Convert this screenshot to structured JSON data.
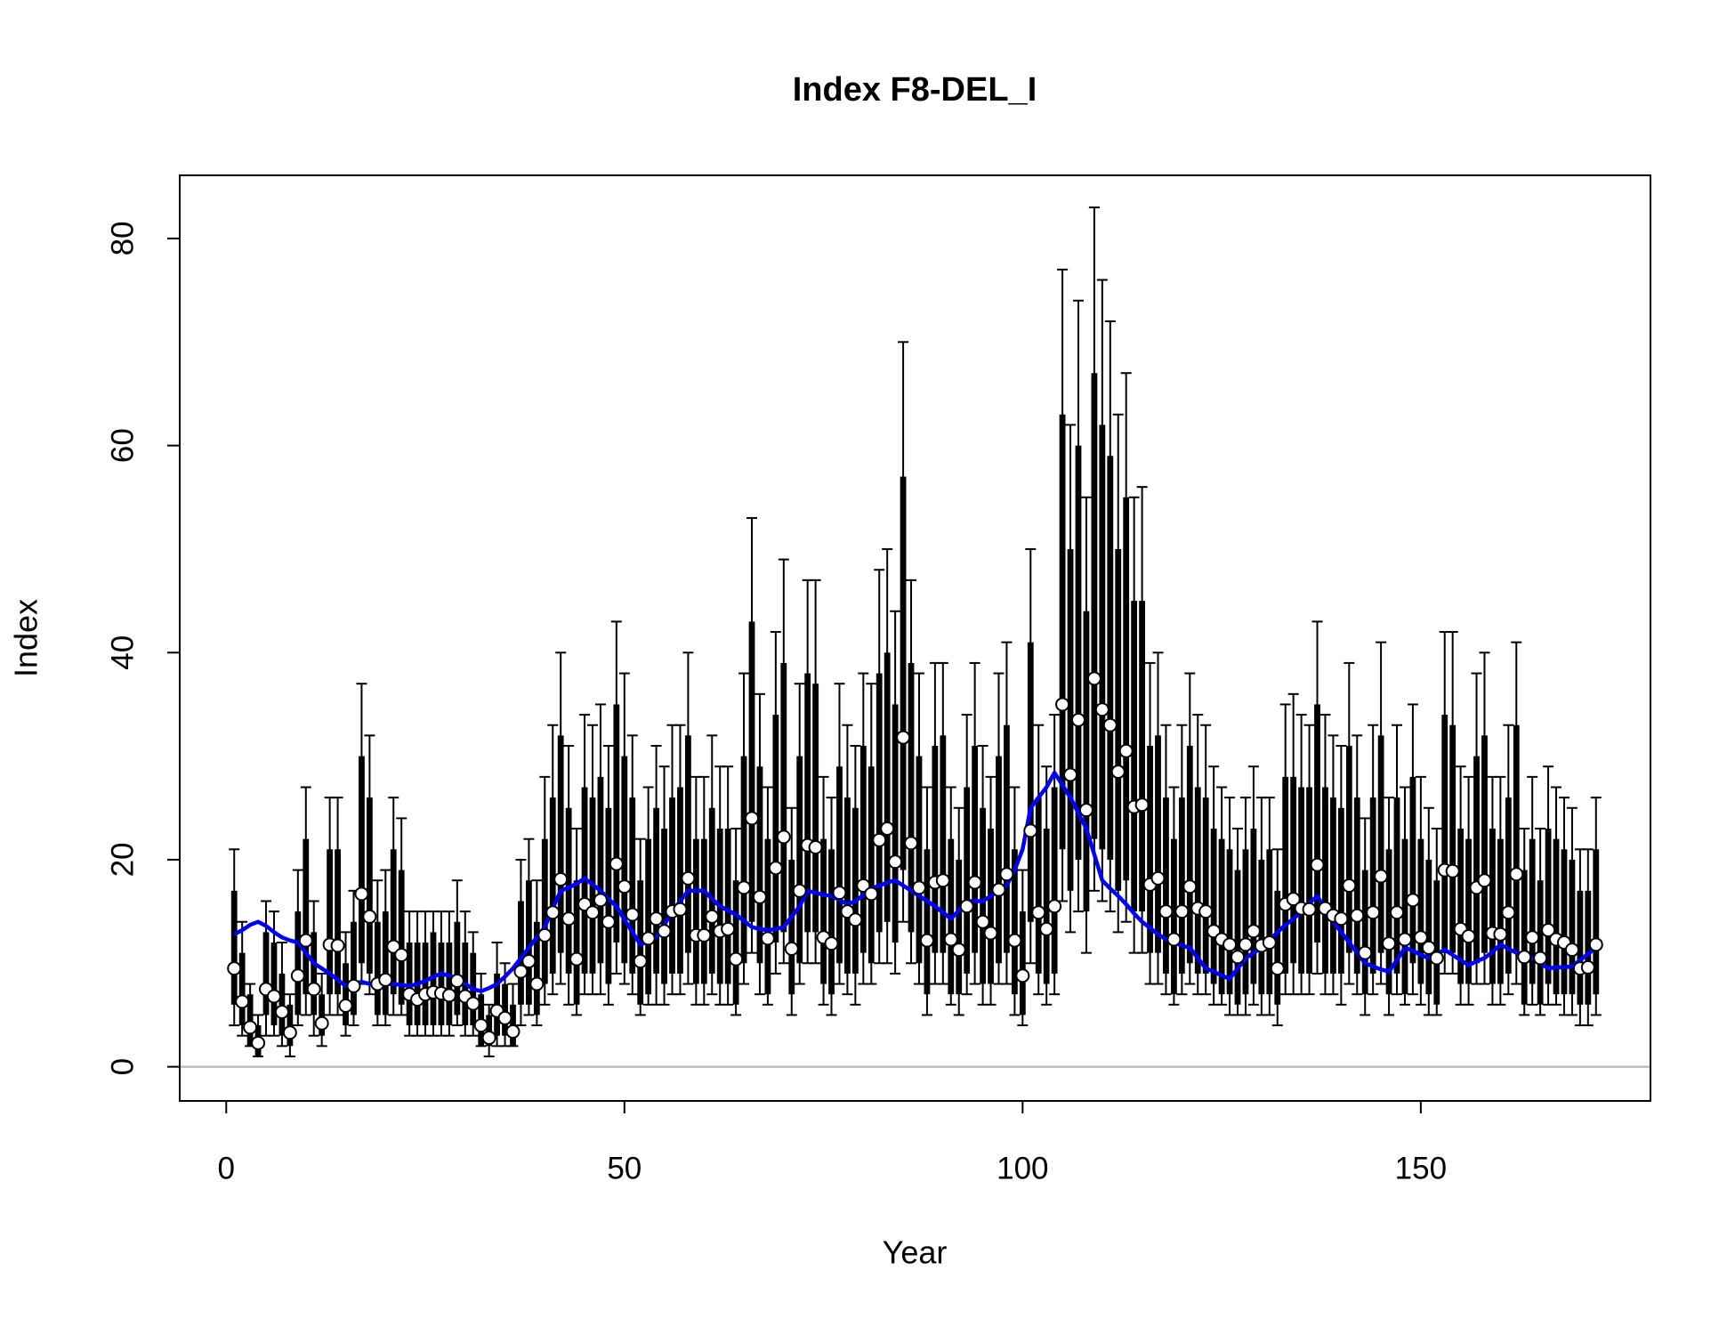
{
  "chart_data": {
    "type": "interval",
    "title": "Index F8-DEL_I",
    "xlabel": "Year",
    "ylabel": "Index",
    "xlim": [
      -5.84,
      178.84
    ],
    "ylim": [
      -3.3,
      86.1
    ],
    "xticks": [
      0,
      50,
      100,
      150
    ],
    "yticks": [
      0,
      20,
      40,
      60,
      80
    ],
    "point_color": "#ffffff",
    "bar_color": "#000000",
    "reference_line": {
      "value": 0,
      "color": "#bebebe"
    },
    "x": [
      1,
      2,
      3,
      4,
      5,
      6,
      7,
      8,
      9,
      10,
      11,
      12,
      13,
      14,
      15,
      16,
      17,
      18,
      19,
      20,
      21,
      22,
      23,
      24,
      25,
      26,
      27,
      28,
      29,
      30,
      31,
      32,
      33,
      34,
      35,
      36,
      37,
      38,
      39,
      40,
      41,
      42,
      43,
      44,
      45,
      46,
      47,
      48,
      49,
      50,
      51,
      52,
      53,
      54,
      55,
      56,
      57,
      58,
      59,
      60,
      61,
      62,
      63,
      64,
      65,
      66,
      67,
      68,
      69,
      70,
      71,
      72,
      73,
      74,
      75,
      76,
      77,
      78,
      79,
      80,
      81,
      82,
      83,
      84,
      85,
      86,
      87,
      88,
      89,
      90,
      91,
      92,
      93,
      94,
      95,
      96,
      97,
      98,
      99,
      100,
      101,
      102,
      103,
      104,
      105,
      106,
      107,
      108,
      109,
      110,
      111,
      112,
      113,
      114,
      115,
      116,
      117,
      118,
      119,
      120,
      121,
      122,
      123,
      124,
      125,
      126,
      127,
      128,
      129,
      130,
      131,
      132,
      133,
      134,
      135,
      136,
      137,
      138,
      139,
      140,
      141,
      142,
      143,
      144,
      145,
      146,
      147,
      148,
      149,
      150,
      151,
      152,
      153,
      154,
      155,
      156,
      157,
      158,
      159,
      160,
      161,
      162,
      163,
      164,
      165,
      166,
      167,
      168,
      169,
      170,
      171,
      172
    ],
    "values": [
      9.5,
      6.3,
      3.8,
      2.3,
      7.5,
      6.8,
      5.3,
      3.3,
      8.8,
      12.2,
      7.5,
      4.2,
      11.8,
      11.7,
      5.9,
      7.8,
      16.7,
      14.5,
      8.0,
      8.4,
      11.6,
      10.8,
      7.0,
      6.5,
      7.0,
      7.2,
      7.1,
      6.9,
      8.3,
      6.8,
      6.1,
      4.0,
      2.8,
      5.4,
      4.7,
      3.4,
      9.2,
      10.2,
      8.0,
      12.7,
      14.9,
      18.1,
      14.3,
      10.4,
      15.7,
      14.9,
      16.1,
      14.0,
      19.6,
      17.4,
      14.7,
      10.2,
      12.4,
      14.3,
      13.1,
      15.0,
      15.2,
      18.2,
      12.7,
      12.7,
      14.5,
      13.1,
      13.3,
      10.4,
      17.3,
      24.0,
      16.4,
      12.4,
      19.2,
      22.2,
      11.4,
      17.0,
      21.4,
      21.2,
      12.5,
      11.9,
      16.8,
      15.0,
      14.2,
      17.5,
      16.7,
      21.9,
      23.0,
      19.8,
      31.8,
      21.6,
      17.3,
      12.2,
      17.8,
      18.0,
      12.3,
      11.3,
      15.5,
      17.8,
      14.0,
      12.9,
      17.1,
      18.6,
      12.2,
      8.8,
      22.8,
      14.9,
      13.3,
      15.5,
      35.0,
      28.2,
      33.5,
      24.8,
      37.5,
      34.5,
      33.0,
      28.5,
      30.5,
      25.1,
      25.3,
      17.6,
      18.2,
      15.0,
      12.3,
      15.0,
      17.4,
      15.3,
      15.0,
      13.1,
      12.3,
      11.8,
      10.6,
      11.8,
      13.1,
      11.7,
      12.0,
      9.5,
      15.7,
      16.2,
      15.3,
      15.2,
      19.5,
      15.3,
      14.6,
      14.3,
      17.5,
      14.6,
      11.0,
      14.9,
      18.4,
      11.9,
      14.9,
      12.3,
      16.1,
      12.5,
      11.5,
      10.5,
      19.0,
      18.9,
      13.3,
      12.6,
      17.3,
      18.0,
      12.9,
      12.8,
      14.9,
      18.6,
      10.6,
      12.5,
      10.5,
      13.2,
      12.3,
      12.0,
      11.3,
      9.5,
      9.6,
      11.8
    ],
    "box_lower": [
      6,
      4,
      2,
      1,
      5,
      4,
      3,
      2,
      5,
      7,
      5,
      3,
      7,
      7,
      4,
      5,
      10,
      9,
      5,
      5,
      7,
      6,
      4,
      4,
      4,
      4,
      4,
      4,
      5,
      4,
      4,
      2,
      2,
      3,
      3,
      2,
      6,
      6,
      5,
      8,
      9,
      11,
      9,
      6,
      9,
      9,
      10,
      8,
      12,
      10,
      9,
      6,
      7,
      9,
      8,
      9,
      9,
      11,
      8,
      8,
      9,
      8,
      8,
      6,
      10,
      14,
      10,
      7,
      12,
      13,
      7,
      10,
      13,
      13,
      8,
      7,
      10,
      9,
      9,
      11,
      10,
      13,
      14,
      12,
      19,
      13,
      10,
      7,
      11,
      11,
      7,
      7,
      9,
      11,
      8,
      8,
      10,
      11,
      7,
      5,
      14,
      9,
      8,
      9,
      21,
      17,
      20,
      15,
      22,
      21,
      20,
      17,
      18,
      15,
      15,
      11,
      11,
      9,
      7,
      9,
      10,
      9,
      9,
      8,
      7,
      7,
      6,
      7,
      8,
      7,
      7,
      6,
      9,
      10,
      9,
      9,
      12,
      9,
      9,
      9,
      11,
      9,
      7,
      9,
      11,
      7,
      9,
      7,
      10,
      8,
      7,
      6,
      11,
      11,
      8,
      8,
      10,
      11,
      8,
      8,
      9,
      11,
      6,
      8,
      6,
      8,
      7,
      7,
      7,
      6,
      6,
      7
    ],
    "box_upper": [
      17,
      11,
      7,
      4,
      13,
      12,
      9,
      6,
      15,
      22,
      13,
      7,
      21,
      21,
      10,
      14,
      30,
      26,
      14,
      15,
      21,
      19,
      12,
      12,
      12,
      13,
      12,
      12,
      14,
      12,
      11,
      7,
      5,
      9,
      8,
      6,
      16,
      18,
      14,
      22,
      26,
      32,
      25,
      18,
      27,
      26,
      28,
      25,
      35,
      30,
      26,
      18,
      22,
      25,
      23,
      26,
      27,
      32,
      22,
      22,
      25,
      23,
      23,
      18,
      30,
      43,
      29,
      22,
      34,
      39,
      20,
      30,
      38,
      37,
      22,
      21,
      29,
      26,
      25,
      31,
      29,
      38,
      40,
      35,
      57,
      39,
      30,
      21,
      31,
      32,
      22,
      20,
      27,
      31,
      25,
      23,
      30,
      33,
      21,
      15,
      41,
      26,
      23,
      27,
      63,
      50,
      60,
      44,
      67,
      62,
      59,
      50,
      55,
      45,
      45,
      31,
      32,
      26,
      22,
      26,
      31,
      27,
      26,
      23,
      22,
      21,
      19,
      21,
      23,
      20,
      21,
      17,
      28,
      28,
      27,
      27,
      35,
      27,
      26,
      25,
      31,
      26,
      19,
      26,
      32,
      21,
      26,
      22,
      28,
      22,
      20,
      18,
      34,
      33,
      23,
      22,
      30,
      32,
      23,
      22,
      26,
      33,
      19,
      22,
      18,
      23,
      22,
      21,
      20,
      17,
      17,
      21
    ],
    "whisker_lower": [
      4,
      3,
      2,
      1,
      3,
      3,
      2,
      1,
      4,
      5,
      3,
      2,
      5,
      5,
      3,
      4,
      8,
      7,
      4,
      4,
      5,
      5,
      3,
      3,
      3,
      3,
      3,
      3,
      4,
      3,
      3,
      2,
      1,
      2,
      2,
      2,
      4,
      5,
      4,
      6,
      7,
      8,
      6,
      5,
      7,
      7,
      7,
      6,
      9,
      8,
      7,
      5,
      6,
      6,
      6,
      7,
      7,
      8,
      6,
      6,
      7,
      6,
      6,
      5,
      8,
      11,
      7,
      6,
      9,
      10,
      5,
      8,
      10,
      10,
      6,
      5,
      8,
      7,
      6,
      8,
      8,
      10,
      10,
      9,
      14,
      10,
      8,
      5,
      8,
      8,
      6,
      5,
      7,
      8,
      6,
      6,
      8,
      8,
      5,
      4,
      10,
      7,
      6,
      7,
      16,
      13,
      15,
      11,
      17,
      16,
      15,
      13,
      14,
      11,
      11,
      8,
      8,
      7,
      6,
      7,
      8,
      7,
      7,
      6,
      6,
      5,
      5,
      5,
      6,
      5,
      5,
      4,
      7,
      7,
      7,
      7,
      9,
      7,
      7,
      6,
      8,
      7,
      5,
      7,
      8,
      5,
      7,
      6,
      7,
      6,
      5,
      5,
      9,
      9,
      6,
      6,
      8,
      8,
      6,
      6,
      7,
      8,
      5,
      6,
      5,
      6,
      6,
      5,
      5,
      4,
      4,
      5
    ],
    "whisker_upper": [
      21,
      14,
      8,
      5,
      16,
      15,
      12,
      7,
      19,
      27,
      16,
      9,
      26,
      26,
      13,
      17,
      37,
      32,
      18,
      19,
      26,
      24,
      15,
      15,
      15,
      15,
      15,
      15,
      18,
      15,
      13,
      9,
      6,
      12,
      10,
      8,
      20,
      22,
      18,
      28,
      33,
      40,
      31,
      23,
      34,
      33,
      35,
      31,
      43,
      38,
      32,
      22,
      27,
      31,
      29,
      33,
      33,
      40,
      28,
      28,
      32,
      29,
      29,
      23,
      38,
      53,
      36,
      27,
      42,
      49,
      25,
      37,
      47,
      47,
      28,
      26,
      37,
      33,
      31,
      38,
      37,
      48,
      50,
      44,
      70,
      47,
      38,
      27,
      39,
      39,
      27,
      25,
      34,
      39,
      31,
      28,
      38,
      41,
      27,
      19,
      50,
      33,
      29,
      34,
      77,
      62,
      74,
      55,
      83,
      76,
      72,
      63,
      67,
      55,
      56,
      39,
      40,
      33,
      27,
      33,
      38,
      34,
      33,
      29,
      27,
      26,
      23,
      26,
      29,
      26,
      26,
      21,
      35,
      36,
      34,
      33,
      43,
      34,
      32,
      31,
      39,
      32,
      24,
      33,
      41,
      26,
      33,
      27,
      35,
      28,
      25,
      23,
      42,
      42,
      29,
      28,
      38,
      40,
      28,
      28,
      33,
      41,
      23,
      28,
      23,
      29,
      27,
      26,
      25,
      21,
      21,
      26
    ],
    "smooth": {
      "color": "#0000ff",
      "values": [
        12.8,
        13.2,
        13.7,
        14.0,
        13.6,
        13.0,
        12.5,
        12.2,
        12.0,
        11.0,
        10.0,
        9.5,
        9.0,
        8.4,
        7.8,
        8.0,
        8.2,
        8.0,
        7.9,
        8.0,
        8.0,
        7.9,
        7.8,
        8.0,
        8.3,
        8.7,
        9.0,
        8.8,
        8.5,
        8.0,
        7.5,
        7.3,
        7.6,
        8.0,
        8.7,
        9.5,
        10.5,
        11.5,
        12.5,
        13.5,
        15.3,
        17.0,
        17.3,
        17.7,
        18.2,
        17.6,
        17.0,
        16.2,
        15.5,
        14.2,
        13.0,
        11.8,
        12.1,
        12.5,
        13.7,
        15.0,
        16.0,
        17.0,
        17.0,
        17.0,
        16.2,
        15.5,
        15.1,
        14.7,
        14.1,
        13.5,
        13.3,
        13.2,
        13.3,
        13.5,
        14.5,
        15.5,
        17.0,
        16.8,
        16.6,
        16.5,
        16.1,
        15.7,
        16.0,
        16.6,
        17.2,
        17.5,
        17.8,
        18.0,
        17.5,
        17.0,
        16.5,
        16.0,
        15.5,
        14.9,
        14.3,
        15.1,
        16.0,
        16.0,
        16.0,
        16.5,
        17.0,
        17.5,
        19.0,
        21.0,
        25.0,
        26.0,
        27.0,
        28.4,
        27.2,
        26.0,
        24.5,
        23.0,
        20.5,
        18.0,
        17.2,
        16.5,
        15.7,
        14.8,
        14.0,
        13.4,
        12.8,
        12.3,
        12.0,
        11.7,
        11.5,
        10.5,
        9.5,
        9.2,
        8.8,
        8.5,
        9.5,
        10.5,
        11.0,
        11.5,
        12.2,
        13.0,
        13.7,
        14.3,
        15.0,
        15.8,
        16.5,
        15.2,
        14.0,
        13.0,
        12.0,
        11.0,
        10.0,
        9.7,
        9.4,
        9.2,
        10.3,
        11.5,
        11.2,
        10.8,
        10.5,
        10.9,
        11.3,
        10.8,
        10.3,
        9.8,
        10.2,
        10.5,
        11.1,
        11.8,
        11.4,
        11.0,
        10.8,
        10.5,
        10.0,
        9.5,
        9.6,
        9.6,
        9.7,
        10.3,
        10.9,
        11.5
      ]
    }
  }
}
